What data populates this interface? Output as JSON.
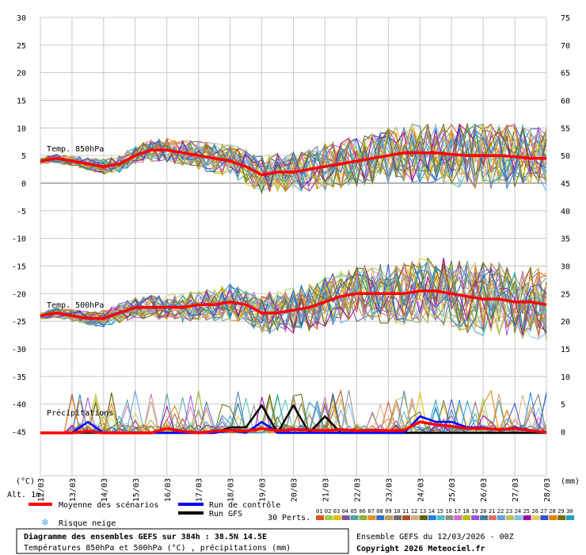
{
  "chart_data": {
    "type": "line",
    "title": "Diagramme des ensembles GEFS sur 384h : 38.5N 14.5E",
    "subtitle": "Températures 850hPa et 500hPa (°C) , précipitations (mm)",
    "run_info": "Ensemble GEFS du 12/03/2026 - 00Z",
    "copyright": "Copyright 2026 Meteociel.fr",
    "left_axis": {
      "unit_label": "(°C)",
      "ticks": [
        "30",
        "25",
        "20",
        "15",
        "10",
        "5",
        "0",
        "-5",
        "-10",
        "-15",
        "-20",
        "-25",
        "-30",
        "-35",
        "-40",
        "-45"
      ],
      "ylim": [
        -45,
        30
      ]
    },
    "right_axis": {
      "unit_label": "(mm)",
      "ticks": [
        "75",
        "70",
        "65",
        "60",
        "55",
        "50",
        "45",
        "40",
        "35",
        "30",
        "25",
        "20",
        "15",
        "10",
        "5",
        "0"
      ]
    },
    "alt_label": "Alt. 1m",
    "x_ticks": [
      "12/03",
      "13/03",
      "14/03",
      "15/03",
      "16/03",
      "17/03",
      "18/03",
      "19/03",
      "20/03",
      "21/03",
      "22/03",
      "23/03",
      "24/03",
      "25/03",
      "26/03",
      "27/03",
      "28/03"
    ],
    "panel_labels": {
      "t850": "Temp. 850hPa",
      "t500": "Temp. 500hPa",
      "precip": "Précipitations"
    },
    "legend": {
      "mean": "Moyenne des scénarios",
      "control": "Run de contrôle",
      "gfs": "Run GFS",
      "snow": "Risque neige",
      "perts": "30 Perts.",
      "member_labels": [
        "01",
        "02",
        "03",
        "04",
        "05",
        "06",
        "07",
        "08",
        "09",
        "10",
        "11",
        "12",
        "13",
        "14",
        "15",
        "16",
        "17",
        "18",
        "19",
        "20",
        "21",
        "22",
        "23",
        "24",
        "25",
        "26",
        "27",
        "28",
        "29",
        "30"
      ],
      "member_colors": [
        "#e0501e",
        "#9bd050",
        "#e0c000",
        "#8050a0",
        "#50a0a0",
        "#90b030",
        "#e09030",
        "#3070c0",
        "#c0a060",
        "#707070",
        "#b05020",
        "#d0b080",
        "#606000",
        "#2080e0",
        "#50c0c0",
        "#909090",
        "#d070c0",
        "#b0c000",
        "#a050e0",
        "#4080a0",
        "#e07060",
        "#60a0e0",
        "#c0c060",
        "#80c0e0",
        "#a000a0",
        "#e0d060",
        "#3050d0",
        "#e08000",
        "#707010",
        "#20a0c0"
      ]
    },
    "colors": {
      "mean": "#ff0000",
      "control": "#0000ff",
      "gfs": "#000000",
      "snow": "#4aa8e8",
      "grid": "#c8c8c8"
    },
    "series": [
      {
        "name": "Temp. 850hPa - Moyenne des scénarios",
        "x": [
          0,
          12,
          24,
          36,
          48,
          60,
          72,
          84,
          96,
          108,
          120,
          132,
          144,
          156,
          168,
          180,
          192,
          204,
          216,
          228,
          240,
          252,
          264,
          276,
          288,
          300,
          312,
          324,
          336,
          348,
          360,
          372,
          384
        ],
        "values": [
          4,
          4.5,
          4,
          3.5,
          3,
          3.5,
          5,
          6,
          6,
          5.5,
          5,
          4.5,
          4,
          3,
          1.5,
          2,
          2,
          2.5,
          3,
          3.5,
          4,
          4.5,
          5,
          5.5,
          5.5,
          5.5,
          5.2,
          5,
          5,
          5,
          4.8,
          4.5,
          4.5
        ]
      },
      {
        "name": "Temp. 500hPa - Moyenne des scénarios",
        "x": [
          0,
          12,
          24,
          36,
          48,
          60,
          72,
          84,
          96,
          108,
          120,
          132,
          144,
          156,
          168,
          180,
          192,
          204,
          216,
          228,
          240,
          252,
          264,
          276,
          288,
          300,
          312,
          324,
          336,
          348,
          360,
          372,
          384
        ],
        "values": [
          -24,
          -23.5,
          -24,
          -24.5,
          -24.5,
          -23.5,
          -22.5,
          -22.5,
          -22.5,
          -22.5,
          -22,
          -22,
          -21.5,
          -22,
          -23.5,
          -23.5,
          -23,
          -22.5,
          -21.5,
          -20.5,
          -20,
          -20,
          -20,
          -20,
          -19.5,
          -19.5,
          -20,
          -20.5,
          -21,
          -21,
          -21.5,
          -21.5,
          -22
        ]
      },
      {
        "name": "Précipitations - Moyenne des scénarios (mm)",
        "x": [
          0,
          12,
          24,
          36,
          48,
          60,
          72,
          84,
          96,
          108,
          120,
          132,
          144,
          156,
          168,
          180,
          192,
          204,
          216,
          228,
          240,
          252,
          264,
          276,
          288,
          300,
          312,
          324,
          336,
          348,
          360,
          372,
          384
        ],
        "values": [
          0,
          0,
          0,
          0.3,
          0,
          0,
          0,
          0,
          0.8,
          0.3,
          0,
          0.3,
          0.5,
          0.3,
          0.8,
          0.4,
          0.6,
          0.5,
          0.4,
          0.6,
          0.4,
          0.5,
          0.4,
          0.5,
          2,
          1.5,
          1.2,
          0.8,
          0.8,
          0.6,
          0.8,
          0.4,
          0.1
        ]
      },
      {
        "name": "Précipitations - Run de contrôle (mm)",
        "x": [
          0,
          12,
          24,
          36,
          48,
          60,
          72,
          84,
          96,
          108,
          120,
          132,
          144,
          156,
          168,
          180,
          192,
          204,
          216,
          228,
          240,
          252,
          264,
          276,
          288,
          300,
          312,
          324,
          336,
          348,
          360,
          372,
          384
        ],
        "values": [
          0,
          0,
          0,
          2,
          0,
          0,
          0,
          0,
          0,
          0,
          0,
          0,
          0.5,
          0,
          2,
          0,
          0,
          0,
          0,
          0,
          0,
          0,
          0,
          0,
          3,
          2,
          2,
          1,
          1,
          0.5,
          1,
          0.5,
          0
        ]
      },
      {
        "name": "Précipitations - Run GFS (mm)",
        "x": [
          0,
          12,
          24,
          36,
          48,
          60,
          72,
          84,
          96,
          108,
          120,
          132,
          144,
          156,
          168,
          180,
          192,
          204,
          216,
          228,
          240,
          252,
          264,
          276,
          288,
          300,
          312,
          324,
          336,
          348,
          360,
          372,
          384
        ],
        "values": [
          0,
          0,
          0,
          0,
          0,
          0,
          0,
          0,
          0,
          0,
          0,
          0,
          1,
          1,
          5,
          0,
          5,
          0,
          3,
          0,
          0,
          0,
          0,
          0,
          0,
          0,
          0,
          0,
          0,
          0,
          0,
          0,
          0
        ]
      }
    ],
    "grid": true
  }
}
